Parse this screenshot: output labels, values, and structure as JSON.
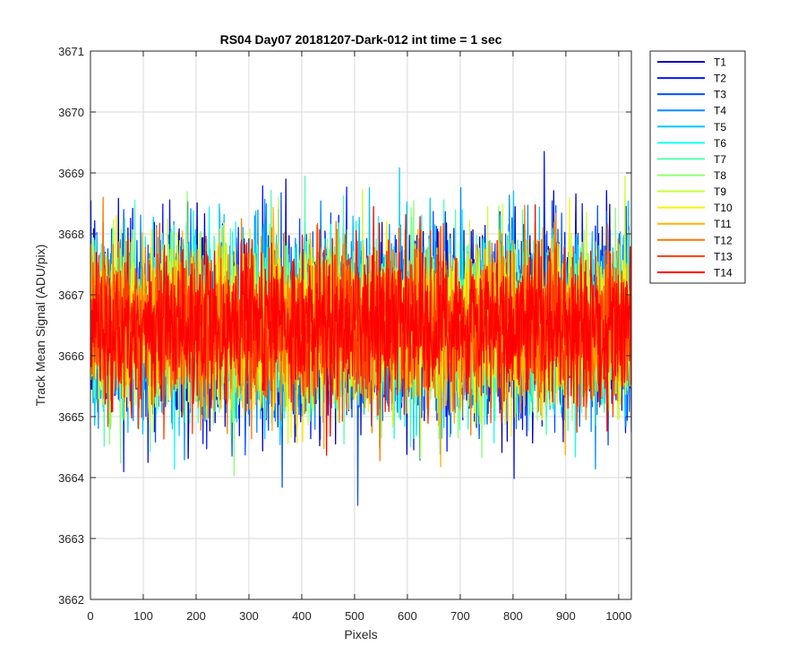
{
  "chart_data": {
    "type": "line",
    "title": "RS04 Day07 20181207-Dark-012 int time = 1 sec",
    "xlabel": "Pixels",
    "ylabel": "Track Mean Signal (ADU/pix)",
    "xlim": [
      0,
      1024
    ],
    "ylim": [
      3662,
      3671
    ],
    "xticks": [
      0,
      100,
      200,
      300,
      400,
      500,
      600,
      700,
      800,
      900,
      1000
    ],
    "yticks": [
      3662,
      3663,
      3664,
      3665,
      3666,
      3667,
      3668,
      3669,
      3670,
      3671
    ],
    "grid": true,
    "legend_position": "outside-top-right",
    "n_points": 1024,
    "mean_signal": 3666.5,
    "series": [
      {
        "name": "T1",
        "color": "#0000bf"
      },
      {
        "name": "T2",
        "color": "#0014ff"
      },
      {
        "name": "T3",
        "color": "#0050ff"
      },
      {
        "name": "T4",
        "color": "#008cff"
      },
      {
        "name": "T5",
        "color": "#00c8ff"
      },
      {
        "name": "T6",
        "color": "#14ffeb"
      },
      {
        "name": "T7",
        "color": "#50ffaf"
      },
      {
        "name": "T8",
        "color": "#8cff73"
      },
      {
        "name": "T9",
        "color": "#c8ff37"
      },
      {
        "name": "T10",
        "color": "#fff000"
      },
      {
        "name": "T11",
        "color": "#ffb400"
      },
      {
        "name": "T12",
        "color": "#ff7800"
      },
      {
        "name": "T13",
        "color": "#ff3c00"
      },
      {
        "name": "T14",
        "color": "#ff0000"
      }
    ]
  }
}
